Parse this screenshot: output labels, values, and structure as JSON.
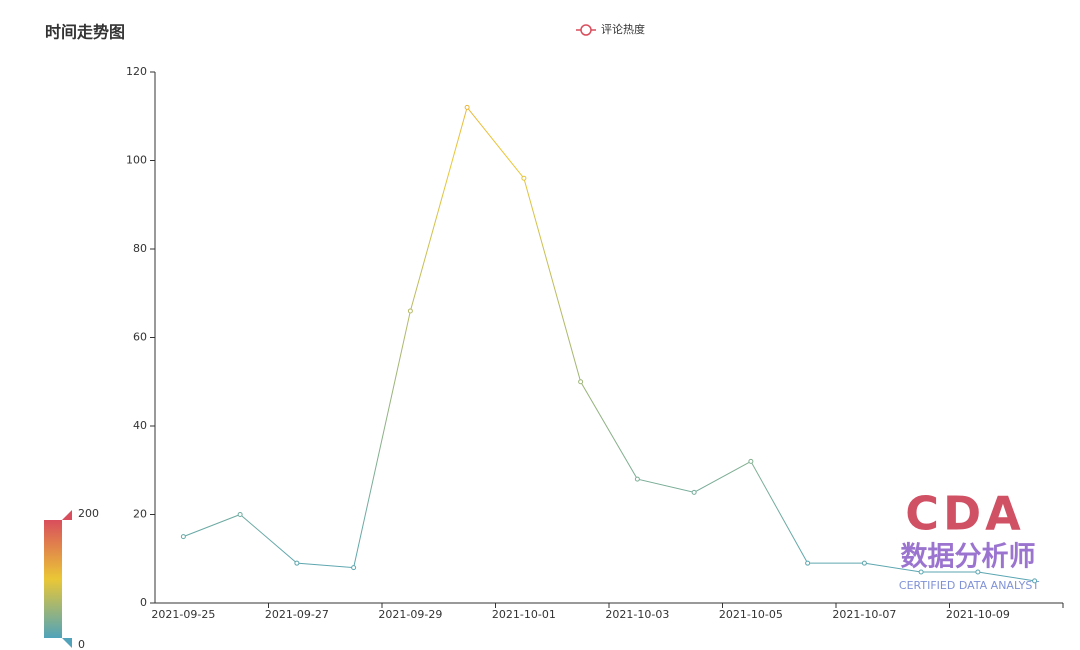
{
  "chart_data": {
    "type": "line",
    "title": "时间走势图",
    "categories": [
      "2021-09-25",
      null,
      "2021-09-27",
      null,
      "2021-09-29",
      null,
      "2021-10-01",
      null,
      "2021-10-03",
      null,
      "2021-10-05",
      null,
      "2021-10-07",
      null,
      "2021-10-09",
      null
    ],
    "series": [
      {
        "name": "评论热度",
        "color": "#d94e5d",
        "values": [
          15,
          20,
          9,
          8,
          66,
          112,
          96,
          50,
          28,
          25,
          32,
          9,
          9,
          7,
          7,
          5
        ]
      }
    ],
    "ylim": [
      0,
      120
    ],
    "yticks": [
      0,
      20,
      40,
      60,
      80,
      100,
      120
    ],
    "grid": false,
    "visual_map": {
      "min": 0,
      "max": 200,
      "colors": [
        "#50a3ba",
        "#eac736",
        "#d94e5d"
      ]
    }
  },
  "watermark": {
    "logo": "CDA",
    "name": "数据分析师",
    "tagline": "CERTIFIED DATA ANALYST"
  }
}
